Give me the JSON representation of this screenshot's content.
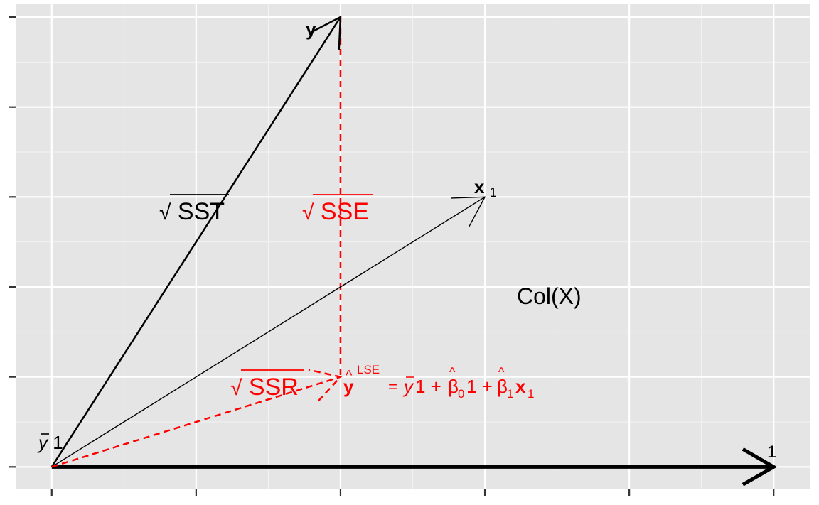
{
  "colors": {
    "panel_background": "#e5e5e5",
    "grid_major": "#ffffff",
    "grid_minor": "#f2f2f2",
    "ink": "#000000",
    "accent": "#ff0000"
  },
  "axes": {
    "xlim": [
      -0.25,
      5.25
    ],
    "ylim": [
      -0.25,
      5.15
    ],
    "x_ticks": [
      0,
      1,
      2,
      3,
      4,
      5
    ],
    "y_ticks": [
      0,
      1,
      2,
      3,
      4,
      5
    ],
    "grid": true
  },
  "vectors": [
    {
      "id": "one",
      "from": [
        0,
        0
      ],
      "to": [
        5,
        0
      ],
      "color": "ink",
      "weight": "thick",
      "style": "solid"
    },
    {
      "id": "y",
      "from": [
        0,
        0
      ],
      "to": [
        2,
        5
      ],
      "color": "ink",
      "weight": "medium",
      "style": "solid"
    },
    {
      "id": "x1",
      "from": [
        0,
        0
      ],
      "to": [
        3,
        3
      ],
      "color": "ink",
      "weight": "thin",
      "style": "solid"
    },
    {
      "id": "yhat",
      "from": [
        0,
        0
      ],
      "to": [
        2,
        1
      ],
      "color": "accent",
      "weight": "medium",
      "style": "dashed"
    }
  ],
  "segments": [
    {
      "id": "residual",
      "from": [
        2,
        5
      ],
      "to": [
        2,
        1
      ],
      "color": "accent",
      "style": "dashed"
    }
  ],
  "labels": {
    "y": {
      "text": "y"
    },
    "x1": {
      "main": "x",
      "sub": "1"
    },
    "one": {
      "text": "1"
    },
    "ybar_one": {
      "bar": "y",
      "rest": "1"
    },
    "col_x": {
      "text": "Col(X)"
    },
    "sqrt_sst": {
      "radical": "√",
      "text": "SST"
    },
    "sqrt_sse": {
      "radical": "√",
      "text": "SSE"
    },
    "sqrt_ssr": {
      "radical": "√",
      "text": "SSR"
    },
    "yhat_eq": {
      "hat": "^",
      "y": "y",
      "sup": "LSE",
      "eq": " = ",
      "ybar": "y",
      "one_a": "1 + ",
      "beta0": "β",
      "sub0": "0",
      "one_b": "1 + ",
      "beta1": "β",
      "sub1": "1",
      "x": "x",
      "subx": "1"
    }
  }
}
